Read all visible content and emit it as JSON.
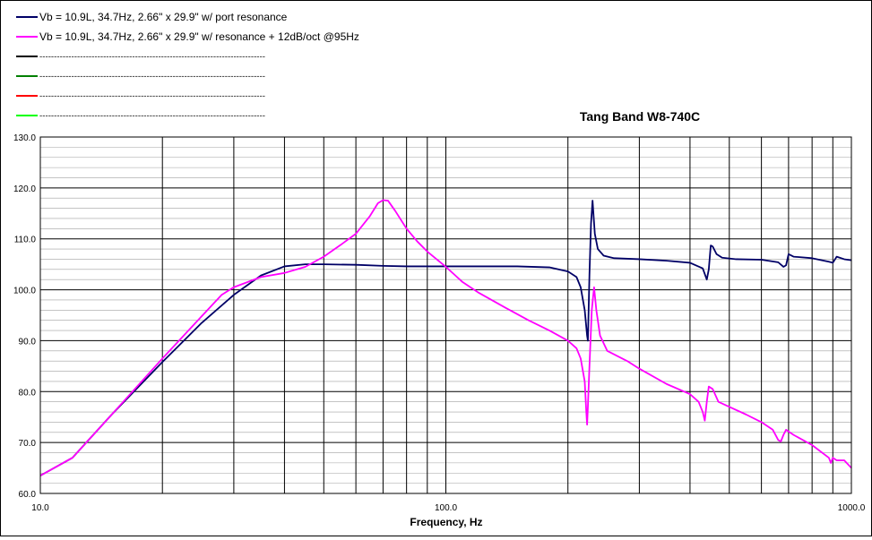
{
  "chart_data": {
    "type": "line",
    "title": "Tang Band W8-740C",
    "xlabel": "Frequency, Hz",
    "ylabel": "",
    "x_scale": "log",
    "xlim": [
      10,
      1000
    ],
    "ylim": [
      60,
      130
    ],
    "grid": true,
    "legend_position": "top-left",
    "x_tick_labels": [
      {
        "value": 10,
        "label": "10.0"
      },
      {
        "value": 100,
        "label": "100.0"
      },
      {
        "value": 1000,
        "label": "1000.0"
      }
    ],
    "y_tick_labels": [
      {
        "value": 60,
        "label": "60.0"
      },
      {
        "value": 70,
        "label": "70.0"
      },
      {
        "value": 80,
        "label": "80.0"
      },
      {
        "value": 90,
        "label": "90.0"
      },
      {
        "value": 100,
        "label": "100.0"
      },
      {
        "value": 110,
        "label": "110.0"
      },
      {
        "value": 120,
        "label": "120.0"
      },
      {
        "value": 130,
        "label": "130.0"
      }
    ],
    "legend_entries": [
      {
        "label": "Vb = 10.9L, 34.7Hz, 2.66\" x 29.9\" w/ port resonance",
        "color": "#000066"
      },
      {
        "label": "Vb = 10.9L, 34.7Hz, 2.66\" x 29.9\" w/ resonance + 12dB/oct @95Hz",
        "color": "#ff00ff"
      },
      {
        "label": "------------------------------------------------------------------------------",
        "color": "#000000"
      },
      {
        "label": "------------------------------------------------------------------------------",
        "color": "#008000"
      },
      {
        "label": "------------------------------------------------------------------------------",
        "color": "#ff0000"
      },
      {
        "label": "------------------------------------------------------------------------------",
        "color": "#00ff00"
      }
    ],
    "series": [
      {
        "color": "#000066",
        "points": [
          [
            10,
            63.5
          ],
          [
            12,
            67
          ],
          [
            15,
            75.5
          ],
          [
            20,
            85.8
          ],
          [
            25,
            93.5
          ],
          [
            30,
            99
          ],
          [
            35,
            102.8
          ],
          [
            40,
            104.6
          ],
          [
            45,
            105
          ],
          [
            50,
            105
          ],
          [
            60,
            104.9
          ],
          [
            70,
            104.7
          ],
          [
            80,
            104.6
          ],
          [
            100,
            104.6
          ],
          [
            120,
            104.6
          ],
          [
            150,
            104.6
          ],
          [
            180,
            104.4
          ],
          [
            200,
            103.6
          ],
          [
            210,
            102.5
          ],
          [
            215,
            100.5
          ],
          [
            220,
            96
          ],
          [
            223,
            91
          ],
          [
            224,
            90
          ],
          [
            226,
            103
          ],
          [
            228,
            113
          ],
          [
            230,
            117.5
          ],
          [
            233,
            111
          ],
          [
            237,
            108
          ],
          [
            245,
            106.7
          ],
          [
            260,
            106.2
          ],
          [
            300,
            106
          ],
          [
            350,
            105.7
          ],
          [
            400,
            105.3
          ],
          [
            430,
            104.2
          ],
          [
            440,
            102
          ],
          [
            445,
            104
          ],
          [
            450,
            108.7
          ],
          [
            455,
            108.5
          ],
          [
            465,
            107
          ],
          [
            480,
            106.3
          ],
          [
            520,
            106
          ],
          [
            600,
            105.9
          ],
          [
            660,
            105.4
          ],
          [
            680,
            104.5
          ],
          [
            690,
            104.8
          ],
          [
            700,
            107
          ],
          [
            720,
            106.5
          ],
          [
            800,
            106.2
          ],
          [
            880,
            105.5
          ],
          [
            900,
            105.3
          ],
          [
            920,
            106.5
          ],
          [
            960,
            106
          ],
          [
            1000,
            105.8
          ]
        ]
      },
      {
        "color": "#ff00ff",
        "points": [
          [
            10,
            63.5
          ],
          [
            12,
            67
          ],
          [
            15,
            75.5
          ],
          [
            20,
            86.5
          ],
          [
            25,
            94.8
          ],
          [
            28,
            99
          ],
          [
            30,
            100.5
          ],
          [
            35,
            102.5
          ],
          [
            40,
            103.3
          ],
          [
            45,
            104.5
          ],
          [
            50,
            106.5
          ],
          [
            55,
            108.8
          ],
          [
            60,
            111
          ],
          [
            65,
            114.5
          ],
          [
            68,
            117
          ],
          [
            70,
            117.6
          ],
          [
            72,
            117.5
          ],
          [
            75,
            115.5
          ],
          [
            80,
            112
          ],
          [
            85,
            109.5
          ],
          [
            90,
            107.5
          ],
          [
            100,
            104.5
          ],
          [
            110,
            101.5
          ],
          [
            120,
            99.5
          ],
          [
            140,
            96.5
          ],
          [
            160,
            94
          ],
          [
            180,
            92
          ],
          [
            200,
            90
          ],
          [
            210,
            88.5
          ],
          [
            215,
            86.5
          ],
          [
            220,
            82
          ],
          [
            222,
            76
          ],
          [
            223,
            73.5
          ],
          [
            224,
            77
          ],
          [
            226,
            85
          ],
          [
            229,
            96
          ],
          [
            232,
            100.5
          ],
          [
            235,
            96
          ],
          [
            240,
            91
          ],
          [
            250,
            88
          ],
          [
            280,
            86
          ],
          [
            300,
            84.5
          ],
          [
            350,
            81.5
          ],
          [
            400,
            79.5
          ],
          [
            420,
            78
          ],
          [
            430,
            76
          ],
          [
            435,
            74.3
          ],
          [
            440,
            78
          ],
          [
            445,
            81
          ],
          [
            455,
            80.5
          ],
          [
            470,
            78
          ],
          [
            500,
            77
          ],
          [
            550,
            75.5
          ],
          [
            600,
            74
          ],
          [
            640,
            72.5
          ],
          [
            660,
            70.5
          ],
          [
            670,
            70.2
          ],
          [
            680,
            71.5
          ],
          [
            690,
            72.5
          ],
          [
            720,
            71.5
          ],
          [
            800,
            69.5
          ],
          [
            880,
            67
          ],
          [
            890,
            66
          ],
          [
            900,
            67
          ],
          [
            920,
            66.5
          ],
          [
            960,
            66.5
          ],
          [
            1000,
            65
          ]
        ]
      }
    ]
  }
}
